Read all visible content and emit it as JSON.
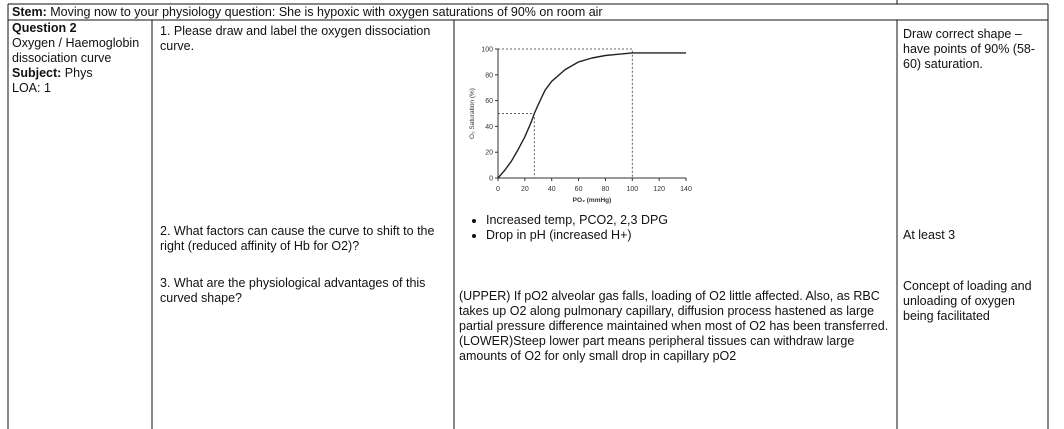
{
  "stem": {
    "label": "Stem:",
    "text": "Moving now to your physiology question: She is hypoxic with oxygen saturations of 90% on room air"
  },
  "question": {
    "title": "Question 2",
    "topic": "Oxygen / Haemoglobin dissociation curve",
    "subject_label": "Subject:",
    "subject": "Phys",
    "loa": "LOA: 1"
  },
  "rows": [
    {
      "question": "1. Please draw and label the oxygen dissociation curve.",
      "marking": "Draw correct shape – have points of 90% (58-60) saturation."
    },
    {
      "question": "2. What factors can cause the curve to shift to the right (reduced affinity of Hb for O2)?",
      "answer": [
        "Increased temp, PCO2, 2,3 DPG",
        "Drop in pH (increased H+)"
      ],
      "marking": "At least 3"
    },
    {
      "question": "3. What are the physiological advantages of this curved shape?",
      "answer": [
        "(UPPER) If pO2 alveolar gas falls, loading of O2 little affected. Also, as RBC takes up O2 along pulmonary capillary, diffusion process hastened as large partial pressure difference maintained when most of O2 has been transferred.",
        "(LOWER)Steep lower part means peripheral tissues can withdraw large amounts of O2 for only small drop in capillary pO2"
      ],
      "marking": "Concept of loading and unloading of oxygen being facilitated"
    }
  ],
  "chart_data": {
    "type": "line",
    "x_label": "PO₂ (mmHg)",
    "y_label": "O₂ Saturation (%)",
    "x": [
      0,
      5,
      10,
      15,
      20,
      25,
      27,
      30,
      35,
      40,
      50,
      60,
      70,
      80,
      90,
      100,
      110,
      120,
      130,
      140
    ],
    "y": [
      0,
      6,
      13,
      22,
      32,
      44,
      50,
      57,
      68,
      75,
      84,
      90,
      93,
      95,
      96,
      97,
      97,
      97,
      97,
      97
    ],
    "color": "#222222",
    "xlim": [
      0,
      140
    ],
    "ylim": [
      0,
      100
    ],
    "xticks": [
      0,
      20,
      40,
      60,
      80,
      100,
      120,
      140
    ],
    "yticks": [
      0,
      20,
      40,
      60,
      80,
      100
    ],
    "guide_points": [
      {
        "x": 27,
        "y": 50
      },
      {
        "x": 100,
        "y": 100
      }
    ]
  }
}
